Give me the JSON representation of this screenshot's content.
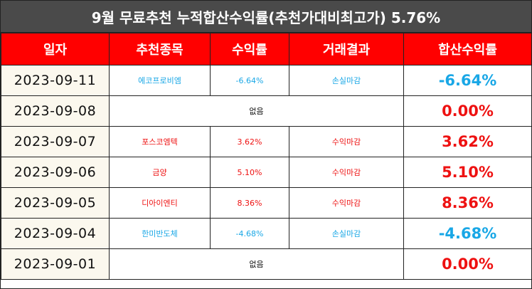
{
  "title": "9월 무료추천 누적합산수익률(추천가대비최고가) 5.76%",
  "headers": [
    "일자",
    "추천종목",
    "수익률",
    "거래결과",
    "합산수익률"
  ],
  "rows": [
    {
      "date": "2023-09-11",
      "stock": "에코프로비엠",
      "ret": "-6.64%",
      "result": "손실마감",
      "total": "-6.64%",
      "kind": "loss"
    },
    {
      "date": "2023-09-08",
      "none": "없음",
      "total": "0.00%",
      "kind": "zero"
    },
    {
      "date": "2023-09-07",
      "stock": "포스코엠텍",
      "ret": "3.62%",
      "result": "수익마감",
      "total": "3.62%",
      "kind": "gain"
    },
    {
      "date": "2023-09-06",
      "stock": "금양",
      "ret": "5.10%",
      "result": "수익마감",
      "total": "5.10%",
      "kind": "gain"
    },
    {
      "date": "2023-09-05",
      "stock": "디아이엔티",
      "ret": "8.36%",
      "result": "수익마감",
      "total": "8.36%",
      "kind": "gain"
    },
    {
      "date": "2023-09-04",
      "stock": "한미반도체",
      "ret": "-4.68%",
      "result": "손실마감",
      "total": "-4.68%",
      "kind": "loss"
    },
    {
      "date": "2023-09-01",
      "none": "없음",
      "total": "0.00%",
      "kind": "zero"
    }
  ],
  "colors": {
    "header_bg": "#ff0000",
    "title_bg": "#4a4a4a",
    "gain": "#ee1111",
    "loss": "#19a7e6",
    "date_bg": "#fbf8ee"
  }
}
